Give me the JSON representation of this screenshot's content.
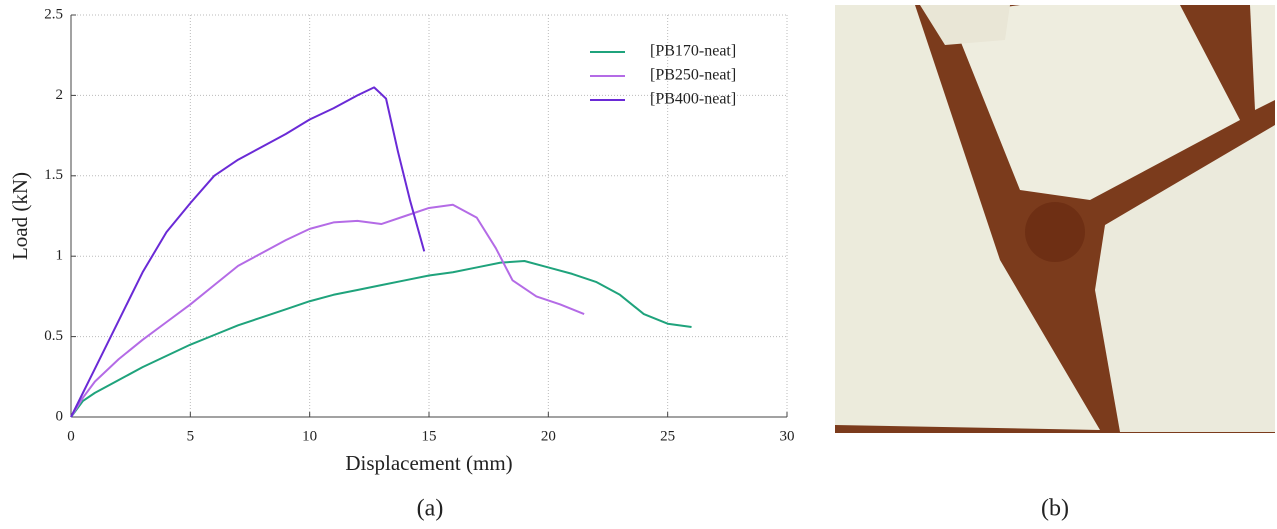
{
  "chart_data": {
    "type": "line",
    "xlabel": "Displacement (mm)",
    "ylabel": "Load (kN)",
    "xlim": [
      0,
      30
    ],
    "ylim": [
      0,
      2.5
    ],
    "xticks": [
      0,
      5,
      10,
      15,
      20,
      25,
      30
    ],
    "yticks": [
      0,
      0.5,
      1,
      1.5,
      2,
      2.5
    ],
    "grid": true,
    "legend": "upper-right",
    "series": [
      {
        "name": "[PB170-neat]",
        "color": "#1fa37c",
        "x": [
          0,
          0.5,
          1,
          2,
          3,
          4,
          5,
          6,
          7,
          8,
          9,
          10,
          11,
          12,
          13,
          14,
          15,
          16,
          17,
          18,
          19,
          20,
          21,
          22,
          23,
          24,
          25,
          26
        ],
        "values": [
          0,
          0.1,
          0.15,
          0.23,
          0.31,
          0.38,
          0.45,
          0.51,
          0.57,
          0.62,
          0.67,
          0.72,
          0.76,
          0.79,
          0.82,
          0.85,
          0.88,
          0.9,
          0.93,
          0.96,
          0.97,
          0.93,
          0.89,
          0.84,
          0.76,
          0.64,
          0.58,
          0.56
        ]
      },
      {
        "name": "[PB250-neat]",
        "color": "#b46be6",
        "x": [
          0,
          0.5,
          1,
          2,
          3,
          4,
          5,
          6,
          7,
          8,
          9,
          10,
          11,
          12,
          13,
          14,
          15,
          16,
          17,
          17.8,
          18.5,
          19.5,
          20.5,
          21.5
        ],
        "values": [
          0,
          0.12,
          0.22,
          0.36,
          0.48,
          0.59,
          0.7,
          0.82,
          0.94,
          1.02,
          1.1,
          1.17,
          1.21,
          1.22,
          1.2,
          1.25,
          1.3,
          1.32,
          1.24,
          1.05,
          0.85,
          0.75,
          0.7,
          0.64
        ]
      },
      {
        "name": "[PB400-neat]",
        "color": "#6a2ad6",
        "x": [
          0,
          0.5,
          1,
          2,
          3,
          4,
          5,
          6,
          7,
          8,
          9,
          10,
          11,
          12,
          12.7,
          13.2,
          13.7,
          14.2,
          14.8
        ],
        "values": [
          0,
          0.15,
          0.3,
          0.6,
          0.9,
          1.15,
          1.33,
          1.5,
          1.6,
          1.68,
          1.76,
          1.85,
          1.92,
          2.0,
          2.05,
          1.98,
          1.65,
          1.35,
          1.03
        ]
      }
    ]
  },
  "panel_labels": [
    "(a)",
    "(b)"
  ]
}
